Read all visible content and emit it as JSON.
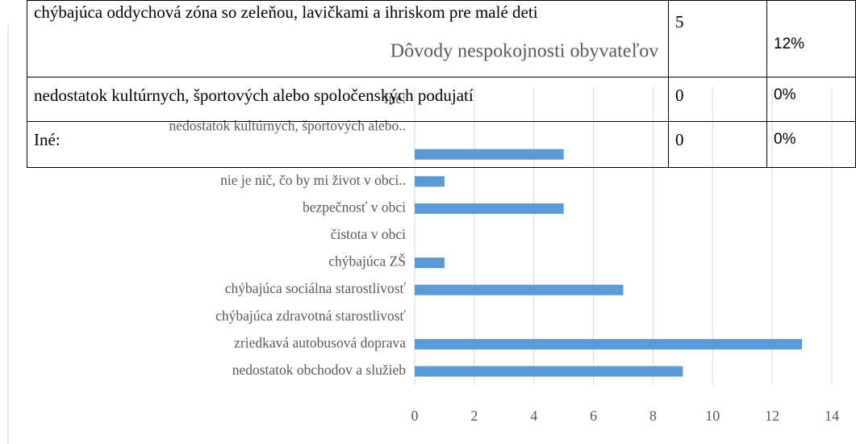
{
  "table": {
    "rows": [
      [
        "chýbajúca oddychová zóna so zeleňou, lavičkami a ihriskom pre malé deti",
        "5",
        "12%"
      ],
      [
        "nedostatok kultúrnych, športových alebo spoločenských podujatí",
        "0",
        "0%"
      ],
      [
        "Iné:",
        "0",
        "0%"
      ]
    ]
  },
  "chart_data": {
    "type": "bar",
    "orientation": "horizontal",
    "title": "Dôvody nespokojnosti obyvateľov",
    "categories": [
      "nedostatok obchodov a služieb",
      "zriedkavá autobusová doprava",
      "chýbajúca zdravotná starostlivosť",
      "chýbajúca sociálna starostlivosť",
      "chýbajúca ZŠ",
      "čistota v obci",
      "bezpečnosť v obci",
      "nie je nič, čo by mi život v obci..",
      null,
      "nedostatok kultúrnych, športových alebo..",
      "Iné:"
    ],
    "values": [
      9,
      13,
      0,
      7,
      1,
      0,
      5,
      1,
      5,
      0,
      0
    ],
    "color": "#5b9bd5",
    "xlim": [
      0,
      14
    ],
    "xticks": [
      0,
      2,
      4,
      6,
      8,
      10,
      12,
      14
    ],
    "grid": true
  }
}
